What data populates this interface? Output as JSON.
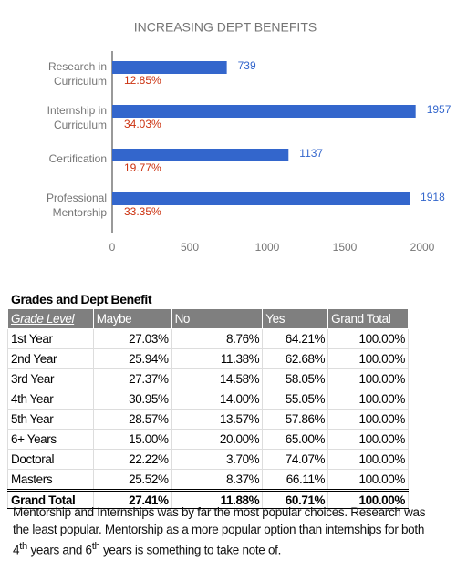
{
  "chart_data": {
    "type": "bar",
    "orientation": "horizontal",
    "title": "INCREASING DEPT BENEFITS",
    "categories": [
      [
        "Research in",
        "Curriculum"
      ],
      [
        "Internship in",
        "Curriculum"
      ],
      [
        "Certification"
      ],
      [
        "Professional",
        "Mentorship"
      ]
    ],
    "values": [
      739,
      1957,
      1137,
      1918
    ],
    "pct_labels": [
      "12.85%",
      "34.03%",
      "19.77%",
      "33.35%"
    ],
    "color": "#3366cc",
    "xlim": [
      0,
      2000
    ],
    "xticks": [
      0,
      500,
      1000,
      1500,
      2000
    ]
  },
  "table": {
    "title": "Grades and Dept Benefit",
    "header": [
      "Grade Level",
      "Maybe",
      "No",
      "Yes",
      "Grand Total"
    ],
    "rows": [
      [
        "1st Year",
        "27.03%",
        "8.76%",
        "64.21%",
        "100.00%"
      ],
      [
        "2nd Year",
        "25.94%",
        "11.38%",
        "62.68%",
        "100.00%"
      ],
      [
        "3rd Year",
        "27.37%",
        "14.58%",
        "58.05%",
        "100.00%"
      ],
      [
        "4th Year",
        "30.95%",
        "14.00%",
        "55.05%",
        "100.00%"
      ],
      [
        "5th Year",
        "28.57%",
        "13.57%",
        "57.86%",
        "100.00%"
      ],
      [
        "6+ Years",
        "15.00%",
        "20.00%",
        "65.00%",
        "100.00%"
      ],
      [
        "Doctoral",
        "22.22%",
        "3.70%",
        "74.07%",
        "100.00%"
      ],
      [
        "Masters",
        "25.52%",
        "8.37%",
        "66.11%",
        "100.00%"
      ]
    ],
    "total": [
      "Grand Total",
      "27.41%",
      "11.88%",
      "60.71%",
      "100.00%"
    ]
  },
  "note": [
    "Mentorship and Internships was by far the most popular choices. Research was the least popular. Mentorship as a more popular option than internships for both 4",
    "th",
    " years and 6",
    "th",
    " years is something to take note of."
  ]
}
